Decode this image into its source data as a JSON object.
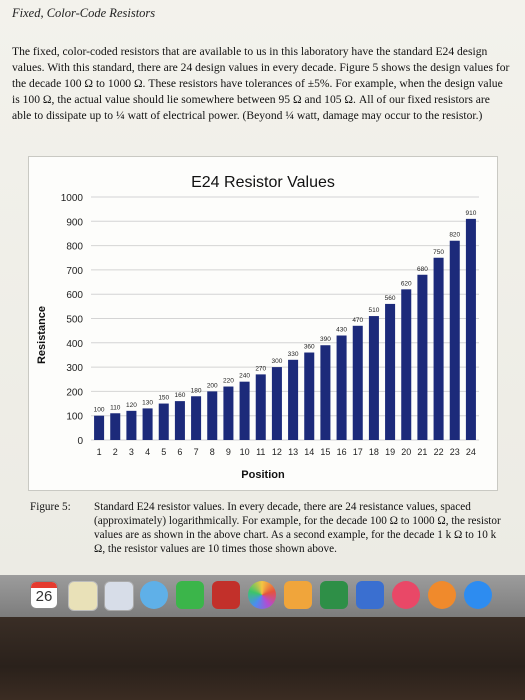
{
  "document": {
    "section_title": "Fixed, Color-Code Resistors",
    "paragraph": "The fixed, color-coded resistors that are available to us in this laboratory have the standard E24 design values. With this standard, there are 24 design values in every decade. Figure 5 shows the design values for the decade 100 Ω to 1000 Ω. These resistors have tolerances of ±5%. For example, when the design value is 100 Ω, the actual value should lie somewhere between 95 Ω and 105 Ω. All of our fixed resistors are able to dissipate up to ¼ watt of electrical power. (Beyond ¼ watt, damage may occur to the resistor.)",
    "caption_label": "Figure 5:",
    "caption_text": "Standard E24 resistor values. In every decade, there are 24 resistance values, spaced (approximately) logarithmically. For example, for the decade 100 Ω to 1000 Ω, the resistor values are as shown in the above chart. As a second example, for the decade 1 k Ω to 10 k Ω, the resistor values are 10 times those shown above."
  },
  "chart_data": {
    "type": "bar",
    "title": "E24 Resistor Values",
    "xlabel": "Position",
    "ylabel": "Resistance",
    "ylim": [
      0,
      1000
    ],
    "yticks": [
      0,
      100,
      200,
      300,
      400,
      500,
      600,
      700,
      800,
      900,
      1000
    ],
    "grid": true,
    "color": "#1c2a7a",
    "categories": [
      "1",
      "2",
      "3",
      "4",
      "5",
      "6",
      "7",
      "8",
      "9",
      "10",
      "11",
      "12",
      "13",
      "14",
      "15",
      "16",
      "17",
      "18",
      "19",
      "20",
      "21",
      "22",
      "23",
      "24"
    ],
    "values": [
      100,
      110,
      120,
      130,
      150,
      160,
      180,
      200,
      220,
      240,
      270,
      300,
      330,
      360,
      390,
      430,
      470,
      510,
      560,
      620,
      680,
      750,
      820,
      910
    ]
  },
  "dock": {
    "calendar_day": "26"
  }
}
